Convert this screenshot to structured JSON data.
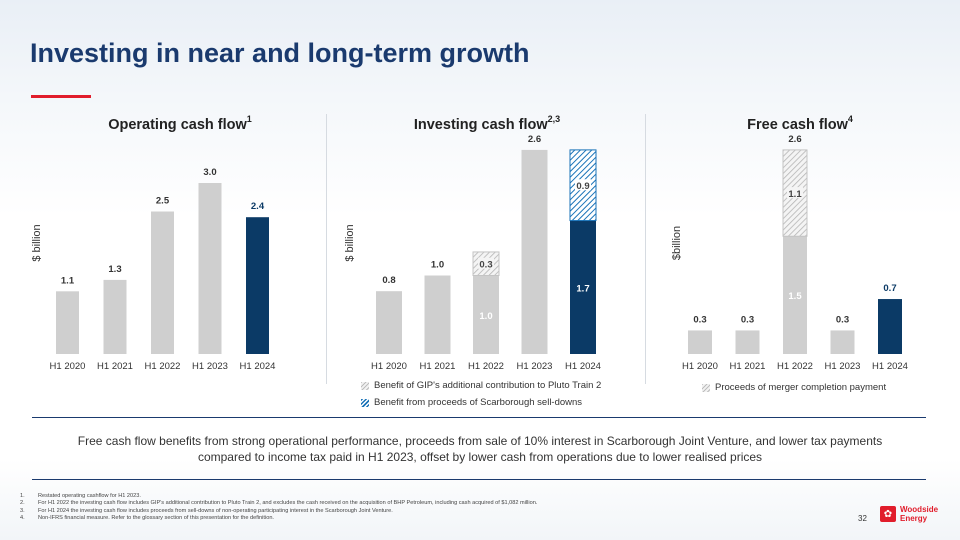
{
  "page": {
    "title": "Investing in near and long-term growth",
    "summary": "Free cash flow benefits from strong operational performance, proceeds from sale of 10% interest in Scarborough Joint Venture, and lower tax payments compared to income tax paid in H1 2023, offset by lower cash from operations due to lower realised prices",
    "page_number": "32",
    "logo_line1": "Woodside",
    "logo_line2": "Energy",
    "footnotes": [
      {
        "num": "1.",
        "text": "Restated operating cashflow for H1 2023."
      },
      {
        "num": "2.",
        "text": "For H1 2022 the investing cash flow includes GIP's additional contribution to Pluto Train 2, and excludes the cash received on the acquisition of BHP Petroleum, including cash acquired of $1,082 million."
      },
      {
        "num": "3.",
        "text": "For H1 2024 the investing cash flow includes proceeds from sell-downs of non-operating participating interest in the Scarborough Joint Venture."
      },
      {
        "num": "4.",
        "text": "Non-IFRS financial measure. Refer to the glossary section of this presentation for the definition."
      }
    ]
  },
  "colors": {
    "grey": "#cfcfcf",
    "navy": "#0b3a66",
    "hatch_blue": "#1a73b8",
    "accent_red": "#e11d2b",
    "title_navy": "#1a3a6e"
  },
  "chart_data": [
    {
      "type": "bar",
      "title": "Operating cash flow",
      "title_sup": "1",
      "ylabel": "$ billion",
      "categories": [
        "H1 2020",
        "H1 2021",
        "H1 2022",
        "H1 2023",
        "H1 2024"
      ],
      "ylim": [
        0,
        3.4
      ],
      "series": [
        {
          "name": "Operating cash flow",
          "style": "solid",
          "values": [
            1.1,
            1.3,
            2.5,
            3.0,
            2.4
          ]
        }
      ],
      "highlight_index": 4,
      "total_labels": [
        "1.1",
        "1.3",
        "2.5",
        "3.0",
        "2.4"
      ]
    },
    {
      "type": "bar",
      "title": "Investing cash flow",
      "title_sup": "2,3",
      "ylabel": "$ billion",
      "categories": [
        "H1 2020",
        "H1 2021",
        "H1 2022",
        "H1 2023",
        "H1 2024"
      ],
      "ylim": [
        0,
        3.4
      ],
      "series": [
        {
          "name": "Investing cash flow",
          "style": "solid",
          "values": [
            0.8,
            1.0,
            1.0,
            2.6,
            1.7
          ],
          "labels": [
            "",
            "",
            "1.0",
            "",
            "1.7"
          ]
        },
        {
          "name": "Benefit of GIP's additional contribution to Pluto Train 2",
          "style": "hatch-grey",
          "values": [
            0,
            0,
            0.3,
            0,
            0
          ],
          "labels": [
            "",
            "",
            "0.3",
            "",
            ""
          ]
        },
        {
          "name": "Benefit from proceeds of Scarborough sell-downs",
          "style": "hatch-blue",
          "values": [
            0,
            0,
            0,
            0,
            0.9
          ],
          "labels": [
            "",
            "",
            "",
            "",
            "0.9"
          ]
        }
      ],
      "highlight_index": 4,
      "total_labels": [
        "0.8",
        "1.0",
        "",
        "2.6",
        ""
      ],
      "legend": [
        {
          "label": "Benefit of GIP's additional contribution to Pluto Train 2",
          "style": "hatch-grey"
        },
        {
          "label": "Benefit from proceeds of Scarborough sell-downs",
          "style": "hatch-blue"
        }
      ]
    },
    {
      "type": "bar",
      "title": "Free cash flow",
      "title_sup": "4",
      "ylabel": "$billion",
      "categories": [
        "H1 2020",
        "H1 2021",
        "H1 2022",
        "H1 2023",
        "H1 2024"
      ],
      "ylim": [
        0,
        3.4
      ],
      "series": [
        {
          "name": "Free cash flow",
          "style": "solid",
          "values": [
            0.3,
            0.3,
            1.5,
            0.3,
            0.7
          ],
          "labels": [
            "",
            "",
            "1.5",
            "",
            ""
          ]
        },
        {
          "name": "Proceeds of merger completion payment",
          "style": "hatch-grey",
          "values": [
            0,
            0,
            1.1,
            0,
            0
          ],
          "labels": [
            "",
            "",
            "1.1",
            "",
            ""
          ]
        }
      ],
      "highlight_index": 4,
      "total_labels": [
        "0.3",
        "0.3",
        "2.6",
        "0.3",
        "0.7"
      ],
      "legend": [
        {
          "label": "Proceeds of merger completion payment",
          "style": "hatch-grey"
        }
      ]
    }
  ]
}
